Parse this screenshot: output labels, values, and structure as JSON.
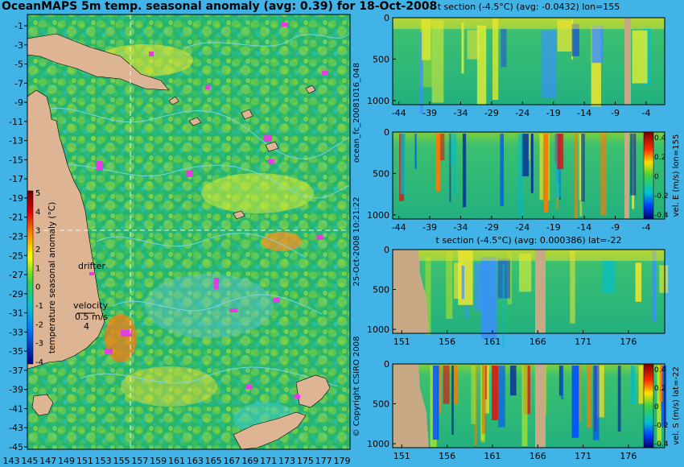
{
  "colors": {
    "background": "#42b3e6",
    "land": "#deb594",
    "anomaly_base": "#2ab86a",
    "contour": "#7fd8f0",
    "drifter": "#e040e0"
  },
  "map": {
    "title": "OceanMAPS 5m temp. seasonal anomaly (avg: 0.39) for 18-Oct-2008",
    "lat_ticks": [
      "-1",
      "-3",
      "-5",
      "-7",
      "-9",
      "-11",
      "-13",
      "-15",
      "-17",
      "-19",
      "-21",
      "-23",
      "-25",
      "-27",
      "-29",
      "-31",
      "-33",
      "-35",
      "-37",
      "-39",
      "-41",
      "-43",
      "-45"
    ],
    "lon_ticks": [
      "143",
      "145",
      "147",
      "149",
      "151",
      "153",
      "155",
      "157",
      "159",
      "161",
      "163",
      "165",
      "167",
      "169",
      "171",
      "173",
      "175",
      "177",
      "179"
    ],
    "legend_drifter": "drifter",
    "legend_velocity": "velocity",
    "legend_speed": "0.5 m/s",
    "legend_small": "4",
    "colorbar": {
      "label": "temperature seasonal anomaly (°C)",
      "ticks": [
        "5",
        "4",
        "3",
        "2",
        "1",
        "0",
        "-1",
        "-2",
        "-3",
        "-4"
      ]
    }
  },
  "side_labels": {
    "forecast": "ocean_fc_20081016_048",
    "date": "25-Oct-2008 10:21:22",
    "copyright": "© Copyright CSIRO 2008"
  },
  "chart_data": [
    {
      "type": "heatmap",
      "title": "t section (-4.5°C) (avg: -0.0432) lon=155",
      "x_ticks": [
        "-44",
        "-39",
        "-34",
        "-29",
        "-24",
        "-19",
        "-14",
        "-9",
        "-4"
      ],
      "y_ticks": [
        "0",
        "500",
        "1000"
      ],
      "ylim": [
        0,
        1050
      ]
    },
    {
      "type": "heatmap",
      "title": "",
      "x_ticks": [
        "-44",
        "-39",
        "-34",
        "-29",
        "-24",
        "-19",
        "-14",
        "-9",
        "-4"
      ],
      "y_ticks": [
        "0",
        "500",
        "1000"
      ],
      "ylim": [
        0,
        1050
      ],
      "colorbar": {
        "label": "vel. E (m/s) lon=155",
        "ticks": [
          "0.4",
          "0.2",
          "0",
          "-0.2",
          "-0.4"
        ]
      }
    },
    {
      "type": "heatmap",
      "title": "t section (-4.5°C) (avg: 0.000386) lat=-22",
      "x_ticks": [
        "151",
        "156",
        "161",
        "166",
        "171",
        "176"
      ],
      "y_ticks": [
        "0",
        "500",
        "1000"
      ],
      "ylim": [
        0,
        1050
      ]
    },
    {
      "type": "heatmap",
      "title": "",
      "x_ticks": [
        "151",
        "156",
        "161",
        "166",
        "171",
        "176"
      ],
      "y_ticks": [
        "0",
        "500",
        "1000"
      ],
      "ylim": [
        0,
        1050
      ],
      "colorbar": {
        "label": "vel. S (m/s) lat=-22",
        "ticks": [
          "0.4",
          "0.2",
          "0",
          "-0.2",
          "-0.4"
        ]
      }
    }
  ]
}
